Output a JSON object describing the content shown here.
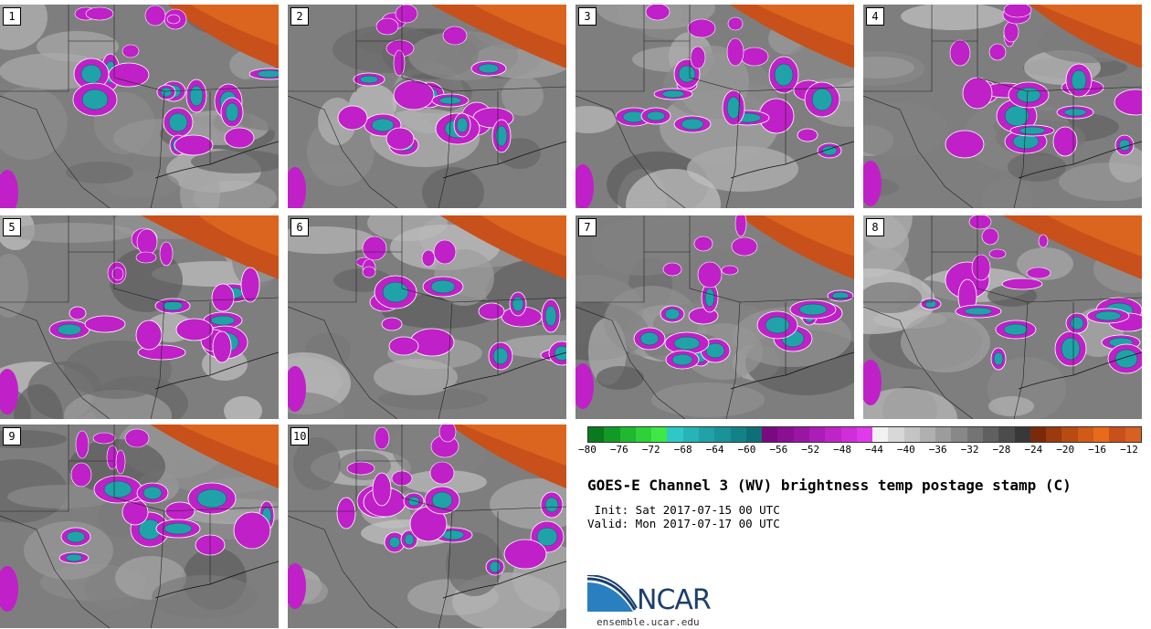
{
  "panels": [
    {
      "label": "1"
    },
    {
      "label": "2"
    },
    {
      "label": "3"
    },
    {
      "label": "4"
    },
    {
      "label": "5"
    },
    {
      "label": "6"
    },
    {
      "label": "7"
    },
    {
      "label": "8"
    },
    {
      "label": "9"
    },
    {
      "label": "10"
    }
  ],
  "colorbar": {
    "colors": [
      "#0a7a1e",
      "#129a26",
      "#1fb82f",
      "#2ed13a",
      "#3ee847",
      "#2ec9c6",
      "#26b4b8",
      "#1fa3a8",
      "#199398",
      "#138288",
      "#0e7076",
      "#7a0a80",
      "#8a0f92",
      "#9a15a4",
      "#ac1cb6",
      "#be24c8",
      "#d02ed9",
      "#e03aeb",
      "#f2f2f2",
      "#d8d8d8",
      "#c4c4c4",
      "#b0b0b0",
      "#9c9c9c",
      "#888888",
      "#747474",
      "#606060",
      "#4c4c4c",
      "#383838",
      "#7a2a0a",
      "#9a3a0e",
      "#b84a12",
      "#d05a16",
      "#e86a1a",
      "#c8501a",
      "#d86020"
    ],
    "tick_labels": [
      "−80",
      "−76",
      "−72",
      "−68",
      "−64",
      "−60",
      "−56",
      "−52",
      "−48",
      "−44",
      "−40",
      "−36",
      "−32",
      "−28",
      "−24",
      "−20",
      "−16",
      "−12"
    ]
  },
  "title": "GOES-E Channel 3 (WV) brightness temp postage stamp (C)",
  "init": " Init: Sat 2017-07-15 00 UTC",
  "valid": "Valid: Mon 2017-07-17 00 UTC",
  "logo_text": "NCAR",
  "site": "ensemble.ucar.edu"
}
